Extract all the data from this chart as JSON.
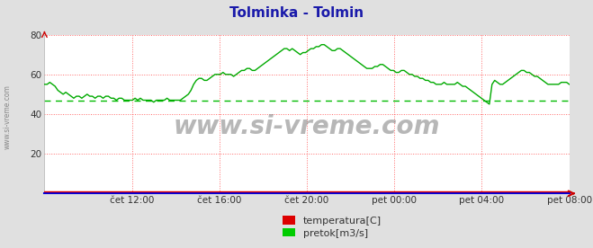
{
  "title": "Tolminka - Tolmin",
  "title_color": "#1a1aaa",
  "bg_color": "#e0e0e0",
  "plot_bg_color": "#ffffff",
  "ylim": [
    0,
    80
  ],
  "yticks": [
    20,
    40,
    60,
    80
  ],
  "xlim": [
    0,
    1
  ],
  "xtick_labels": [
    "",
    "čet 12:00",
    "čet 16:00",
    "čet 20:00",
    "pet 00:00",
    "pet 04:00",
    "pet 08:00"
  ],
  "watermark": "www.si-vreme.com",
  "legend_labels": [
    "temperatura[C]",
    "pretok[m3/s]"
  ],
  "legend_colors": [
    "#dd0000",
    "#00cc00"
  ],
  "avg_line_value": 47.0,
  "avg_line_color": "#00bb00",
  "pretok_color": "#00aa00",
  "temperatura_color": "#dd0000",
  "pretok_values": [
    55,
    55,
    56,
    55,
    54,
    52,
    51,
    50,
    51,
    50,
    49,
    48,
    49,
    49,
    48,
    49,
    50,
    49,
    49,
    48,
    49,
    49,
    48,
    49,
    49,
    48,
    48,
    47,
    48,
    48,
    47,
    47,
    47,
    47,
    48,
    47,
    48,
    47,
    47,
    47,
    47,
    46,
    47,
    47,
    47,
    47,
    48,
    47,
    47,
    47,
    47,
    47,
    48,
    49,
    50,
    52,
    55,
    57,
    58,
    58,
    57,
    57,
    58,
    59,
    60,
    60,
    60,
    61,
    60,
    60,
    60,
    59,
    60,
    61,
    62,
    62,
    63,
    63,
    62,
    62,
    63,
    64,
    65,
    66,
    67,
    68,
    69,
    70,
    71,
    72,
    73,
    73,
    72,
    73,
    72,
    71,
    70,
    71,
    71,
    72,
    73,
    73,
    74,
    74,
    75,
    75,
    74,
    73,
    72,
    72,
    73,
    73,
    72,
    71,
    70,
    69,
    68,
    67,
    66,
    65,
    64,
    63,
    63,
    63,
    64,
    64,
    65,
    65,
    64,
    63,
    62,
    62,
    61,
    61,
    62,
    62,
    61,
    60,
    60,
    59,
    59,
    58,
    58,
    57,
    57,
    56,
    56,
    55,
    55,
    55,
    56,
    55,
    55,
    55,
    55,
    56,
    55,
    54,
    54,
    53,
    52,
    51,
    50,
    49,
    48,
    47,
    46,
    45,
    55,
    57,
    56,
    55,
    55,
    56,
    57,
    58,
    59,
    60,
    61,
    62,
    62,
    61,
    61,
    60,
    59,
    59,
    58,
    57,
    56,
    55,
    55,
    55,
    55,
    55,
    56,
    56,
    56,
    55
  ],
  "temperatura_values": [
    1,
    1,
    1,
    1,
    1,
    1,
    1,
    1,
    1,
    1,
    1,
    1,
    1,
    1,
    1,
    1,
    1,
    1,
    1,
    1,
    1,
    1,
    1,
    1,
    1,
    1,
    1,
    1,
    1,
    1,
    1,
    1,
    1,
    1,
    1,
    1,
    1,
    1,
    1,
    1,
    1,
    1,
    1,
    1,
    1,
    1,
    1,
    1,
    1,
    1,
    1,
    1,
    1,
    1,
    1,
    1,
    1,
    1,
    1,
    1,
    1,
    1,
    1,
    1,
    1,
    1,
    1,
    1,
    1,
    1,
    1,
    1,
    1,
    1,
    1,
    1,
    1,
    1,
    1,
    1,
    1,
    1,
    1,
    1,
    1,
    1,
    1,
    1,
    1,
    1,
    1,
    1,
    1,
    1,
    1,
    1,
    1,
    1,
    1,
    1,
    1,
    1,
    1,
    1,
    1,
    1,
    1,
    1,
    1,
    1,
    1,
    1,
    1,
    1,
    1,
    1,
    1,
    1,
    1,
    1,
    1,
    1,
    1,
    1,
    1,
    1,
    1,
    1,
    1,
    1,
    1,
    1,
    1,
    1,
    1,
    1,
    1,
    1,
    1,
    1,
    1,
    1,
    1,
    1,
    1,
    1,
    1,
    1,
    1,
    1,
    1,
    1,
    1,
    1,
    1,
    1,
    1,
    1,
    1,
    1,
    1,
    1,
    1,
    1,
    1,
    1,
    1,
    1,
    1,
    1,
    1,
    1,
    1,
    1,
    1,
    1,
    1,
    1,
    1,
    1,
    1,
    1,
    1,
    1,
    1,
    1,
    1,
    1,
    1,
    1,
    1,
    1,
    1,
    1,
    1,
    1,
    1,
    1
  ]
}
